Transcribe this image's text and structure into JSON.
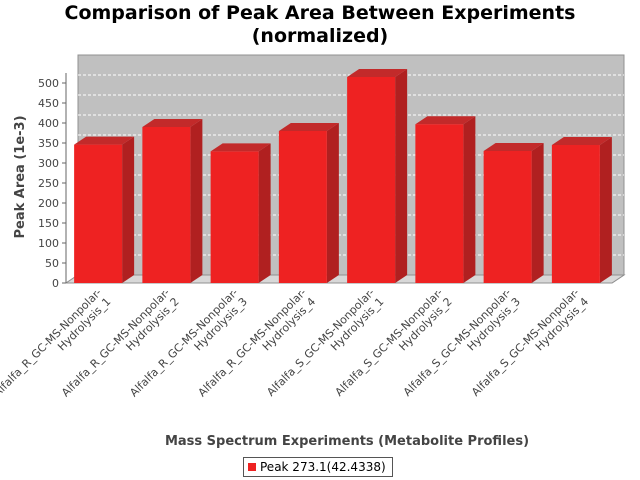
{
  "chart_data": {
    "type": "bar",
    "title_lines": [
      "Comparison of Peak Area Between Experiments",
      "(normalized)"
    ],
    "xlabel": "Mass Spectrum Experiments (Metabolite Profiles)",
    "ylabel": "Peak Area (1e-3)",
    "ylim": [
      0,
      500
    ],
    "yticks": [
      0,
      50,
      100,
      150,
      200,
      250,
      300,
      350,
      400,
      450,
      500
    ],
    "categories": [
      [
        "Alfalfa_R_GC-MS-Nonpolar-",
        "Hydrolysis_1"
      ],
      [
        "Alfalfa_R_GC-MS-Nonpolar-",
        "Hydrolysis_2"
      ],
      [
        "Alfalfa_R_GC-MS-Nonpolar-",
        "Hydrolysis_3"
      ],
      [
        "Alfalfa_R_GC-MS-Nonpolar-",
        "Hydrolysis_4"
      ],
      [
        "Alfalfa_S_GC-MS-Nonpolar-",
        "Hydrolysis_1"
      ],
      [
        "Alfalfa_S_GC-MS-Nonpolar-",
        "Hydrolysis_2"
      ],
      [
        "Alfalfa_S_GC-MS-Nonpolar-",
        "Hydrolysis_3"
      ],
      [
        "Alfalfa_S_GC-MS-Nonpolar-",
        "Hydrolysis_4"
      ]
    ],
    "series": [
      {
        "name": "Peak 273.1(42.4338)",
        "color": "#ee2222",
        "values": [
          346,
          390,
          329,
          380,
          515,
          397,
          330,
          345
        ]
      }
    ],
    "grid": true,
    "legend_position": "bottom-center",
    "plot_background": "#c0c0c0"
  }
}
